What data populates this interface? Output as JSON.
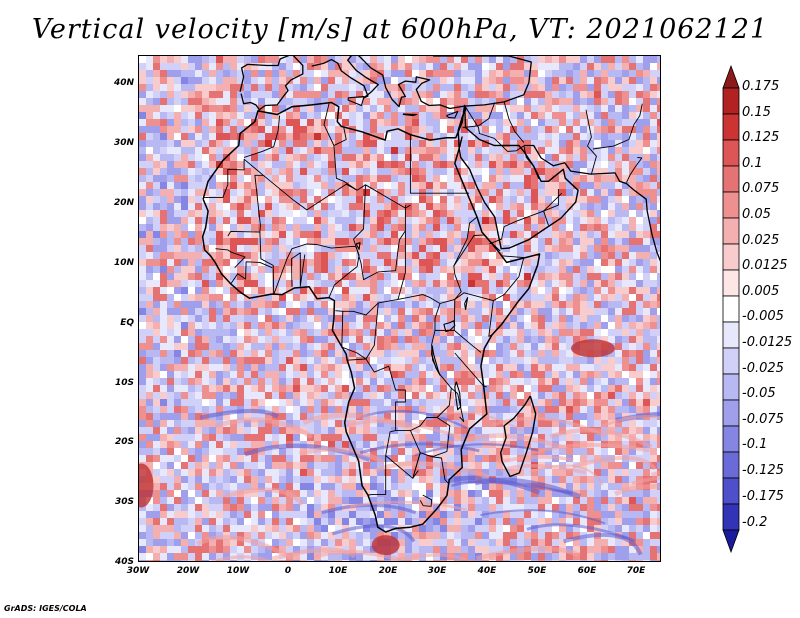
{
  "title": "Vertical velocity [m/s] at 600hPa, VT: 2021062121",
  "footer": "GrADS: IGES/COLA",
  "map": {
    "region": "Africa",
    "lon_range": [
      -30,
      76
    ],
    "lat_range": [
      -40,
      45
    ],
    "lat_labels": [
      "40N",
      "30N",
      "20N",
      "10N",
      "EQ",
      "10S",
      "20S",
      "30S",
      "40S"
    ],
    "lon_labels": [
      "30W",
      "20W",
      "10W",
      "0",
      "10E",
      "20E",
      "30E",
      "40E",
      "50E",
      "60E",
      "70E"
    ],
    "coastline_color": "#000000"
  },
  "colorbar": {
    "labels": [
      "0.175",
      "0.15",
      "0.125",
      "0.1",
      "0.075",
      "0.05",
      "0.025",
      "0.0125",
      "0.005",
      "-0.005",
      "-0.0125",
      "-0.025",
      "-0.05",
      "-0.075",
      "-0.1",
      "-0.125",
      "-0.175",
      "-0.2"
    ],
    "colors": [
      "#8c1a1a",
      "#b22222",
      "#cc3333",
      "#dd5555",
      "#e67373",
      "#ee9090",
      "#f4b0b0",
      "#f8cccc",
      "#fce6e6",
      "#ffffff",
      "#e8e8fc",
      "#d0d0f8",
      "#b8b8f2",
      "#9f9feb",
      "#8585e3",
      "#6a6ad8",
      "#4f4fcc",
      "#3333b8",
      "#1a1a9c"
    ]
  }
}
